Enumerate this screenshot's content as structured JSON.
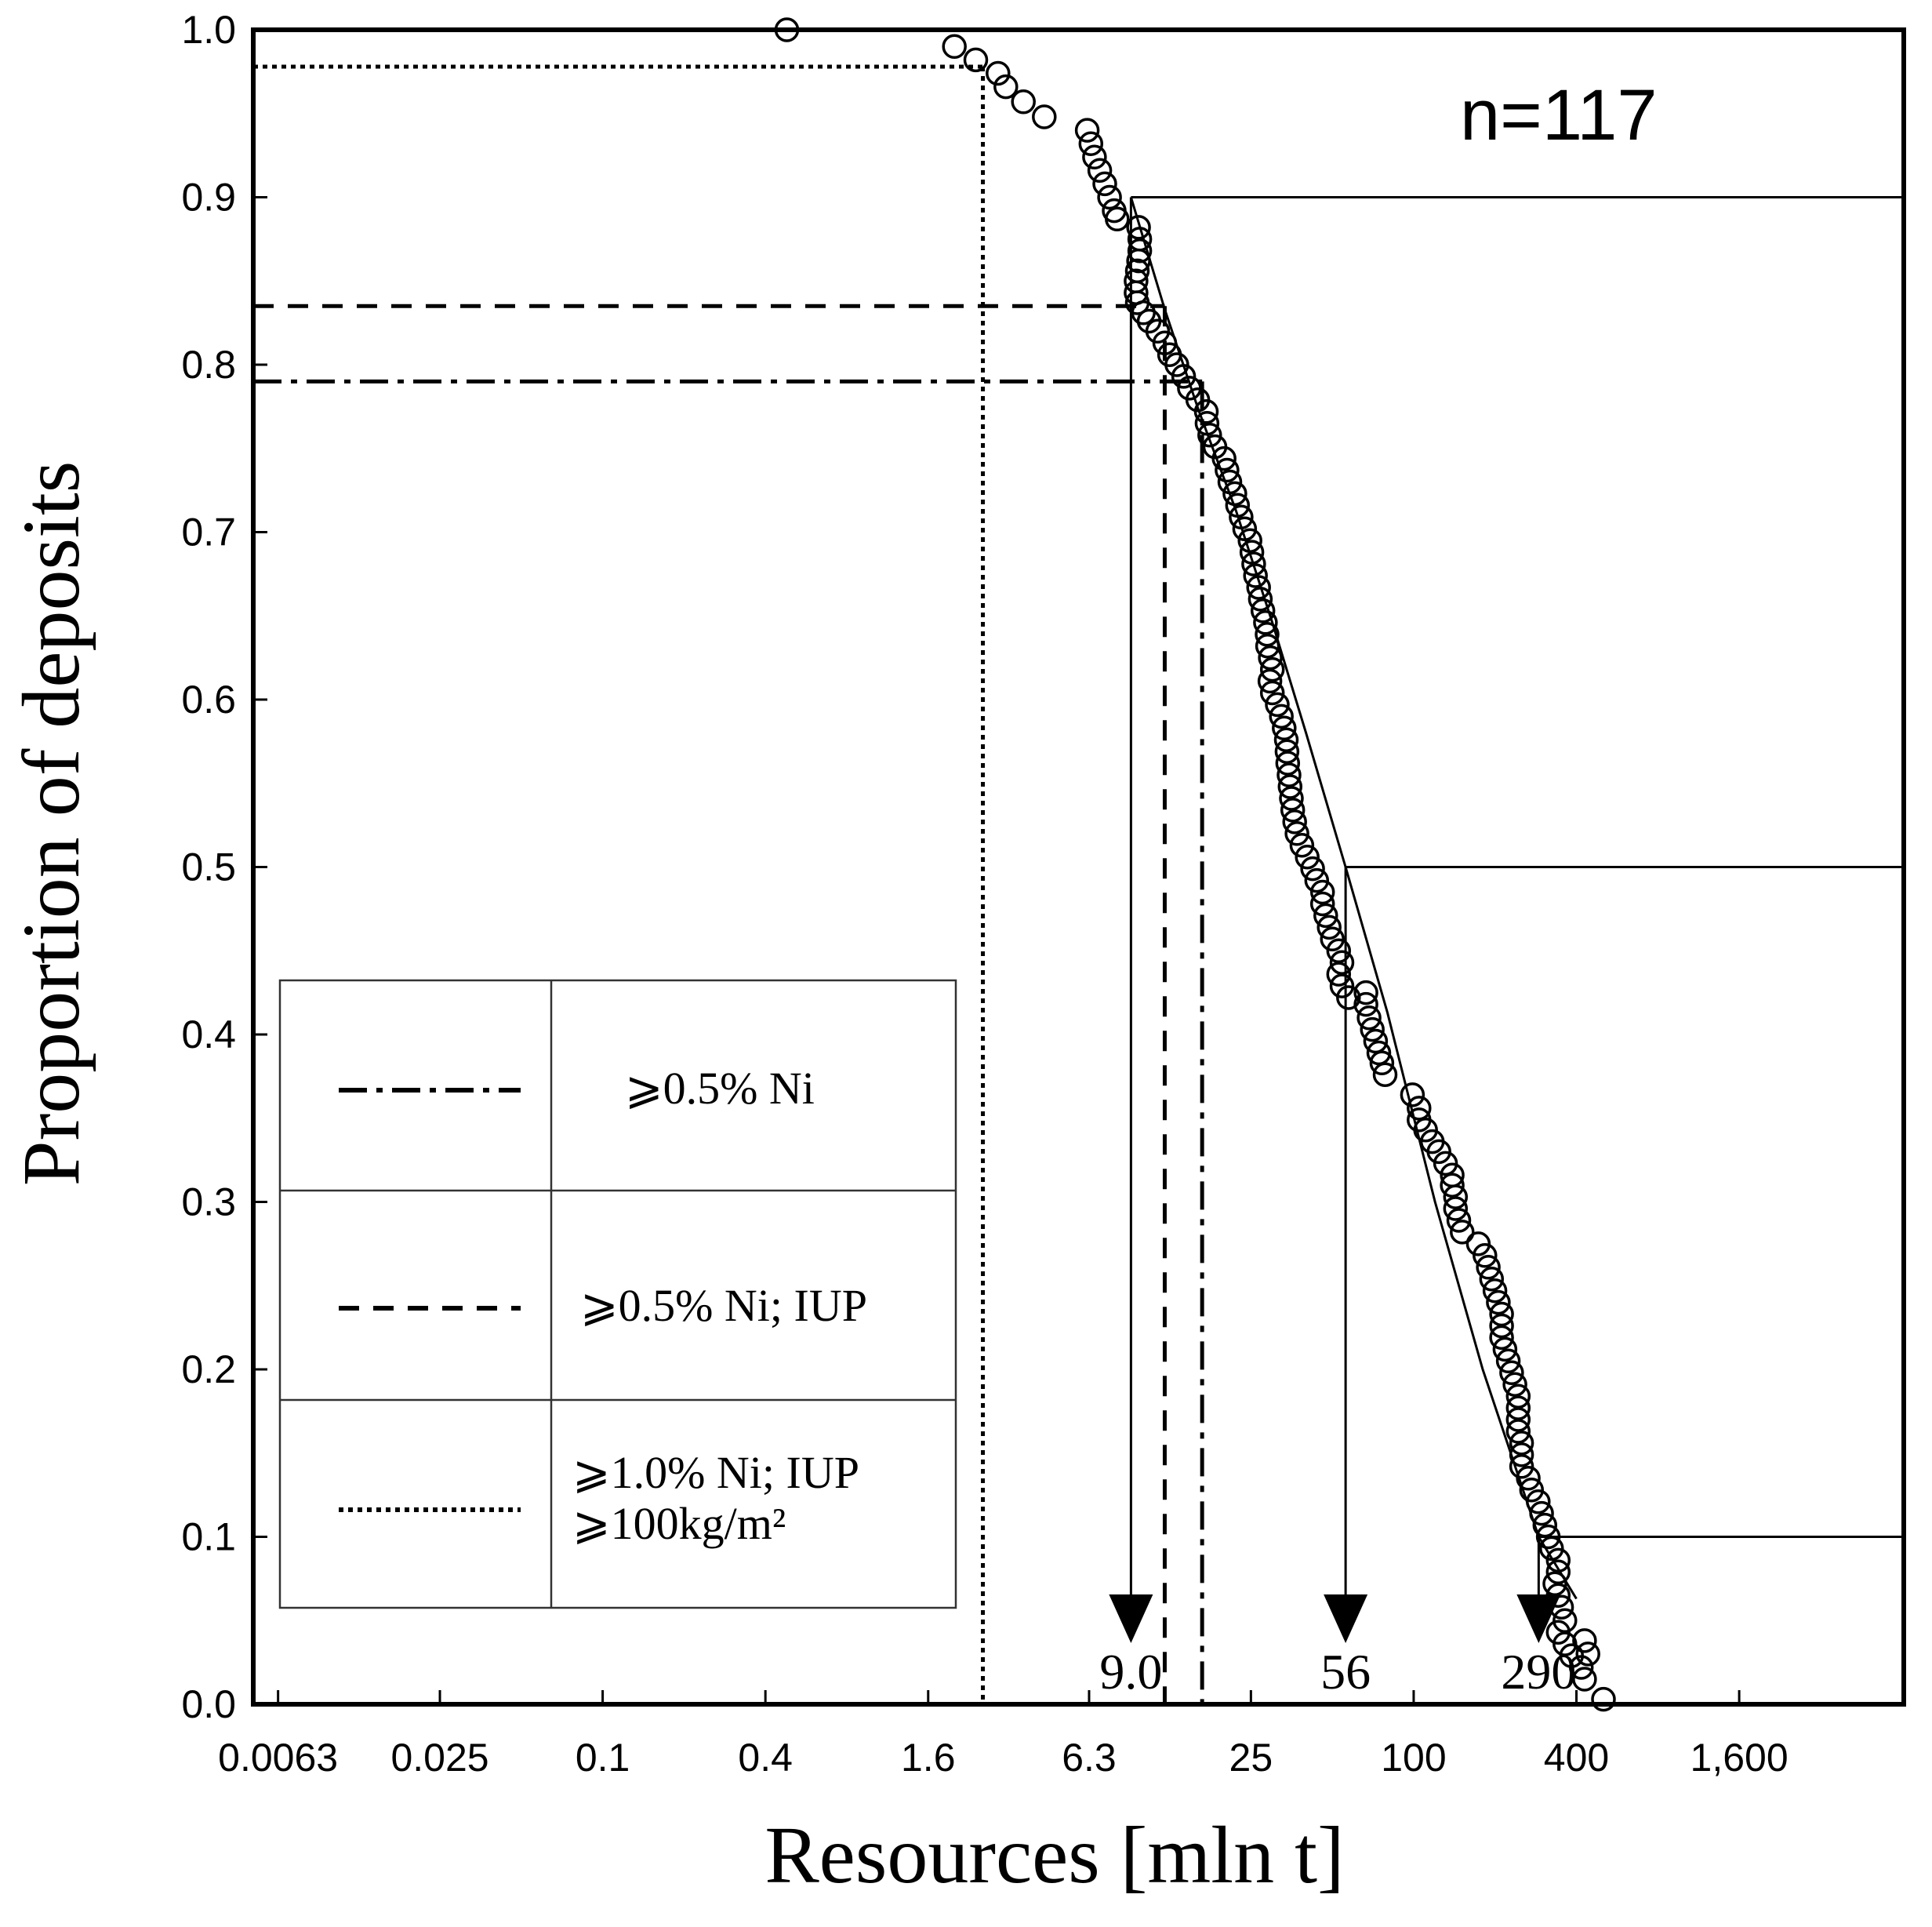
{
  "chart_data": {
    "type": "scatter",
    "title": "",
    "annotation": "n=117",
    "xlabel": "Resources [mln t]",
    "ylabel": "Proportion of deposits",
    "x_scale": "log",
    "x_ticks": [
      {
        "value": 0.0063,
        "label": "0.0063"
      },
      {
        "value": 0.025,
        "label": "0.025"
      },
      {
        "value": 0.1,
        "label": "0.1"
      },
      {
        "value": 0.4,
        "label": "0.4"
      },
      {
        "value": 1.6,
        "label": "1.6"
      },
      {
        "value": 6.3,
        "label": "6.3"
      },
      {
        "value": 25,
        "label": "25"
      },
      {
        "value": 100,
        "label": "100"
      },
      {
        "value": 400,
        "label": "400"
      },
      {
        "value": 1600,
        "label": "1,600"
      }
    ],
    "xlim": [
      0.0051,
      6500
    ],
    "y_ticks": [
      {
        "value": 0.0,
        "label": "0.0"
      },
      {
        "value": 0.1,
        "label": "0.1"
      },
      {
        "value": 0.2,
        "label": "0.2"
      },
      {
        "value": 0.3,
        "label": "0.3"
      },
      {
        "value": 0.4,
        "label": "0.4"
      },
      {
        "value": 0.5,
        "label": "0.5"
      },
      {
        "value": 0.6,
        "label": "0.6"
      },
      {
        "value": 0.7,
        "label": "0.7"
      },
      {
        "value": 0.8,
        "label": "0.8"
      },
      {
        "value": 0.9,
        "label": "0.9"
      },
      {
        "value": 1.0,
        "label": "1.0"
      }
    ],
    "ylim": [
      0,
      1.0
    ],
    "grid": false,
    "series": [
      {
        "name": "deposits",
        "points": [
          [
            0.48,
            1.0
          ],
          [
            2.0,
            0.99
          ],
          [
            2.4,
            0.982
          ],
          [
            2.9,
            0.974
          ],
          [
            3.1,
            0.966
          ],
          [
            3.6,
            0.957
          ],
          [
            4.3,
            0.948
          ],
          [
            6.2,
            0.94
          ],
          [
            6.4,
            0.932
          ],
          [
            6.6,
            0.924
          ],
          [
            6.9,
            0.916
          ],
          [
            7.2,
            0.908
          ],
          [
            7.5,
            0.9
          ],
          [
            7.8,
            0.892
          ],
          [
            8.0,
            0.887
          ],
          [
            9.6,
            0.882
          ],
          [
            9.7,
            0.875
          ],
          [
            9.7,
            0.868
          ],
          [
            9.6,
            0.862
          ],
          [
            9.5,
            0.856
          ],
          [
            9.4,
            0.85
          ],
          [
            9.4,
            0.843
          ],
          [
            9.5,
            0.837
          ],
          [
            10.0,
            0.831
          ],
          [
            10.5,
            0.826
          ],
          [
            11.3,
            0.82
          ],
          [
            12.0,
            0.813
          ],
          [
            12.5,
            0.806
          ],
          [
            13.3,
            0.8
          ],
          [
            14.1,
            0.793
          ],
          [
            14.8,
            0.786
          ],
          [
            15.9,
            0.779
          ],
          [
            17.1,
            0.772
          ],
          [
            17.2,
            0.765
          ],
          [
            17.6,
            0.758
          ],
          [
            18.4,
            0.751
          ],
          [
            19.9,
            0.744
          ],
          [
            20.4,
            0.737
          ],
          [
            20.9,
            0.73
          ],
          [
            21.8,
            0.723
          ],
          [
            22.3,
            0.716
          ],
          [
            23.0,
            0.709
          ],
          [
            23.7,
            0.702
          ],
          [
            24.8,
            0.695
          ],
          [
            25.2,
            0.688
          ],
          [
            25.6,
            0.681
          ],
          [
            26.0,
            0.674
          ],
          [
            26.7,
            0.667
          ],
          [
            27.1,
            0.66
          ],
          [
            27.7,
            0.653
          ],
          [
            28.3,
            0.646
          ],
          [
            28.7,
            0.639
          ],
          [
            28.8,
            0.632
          ],
          [
            29.5,
            0.625
          ],
          [
            30.0,
            0.618
          ],
          [
            29.4,
            0.611
          ],
          [
            30.0,
            0.604
          ],
          [
            31.3,
            0.597
          ],
          [
            32.4,
            0.59
          ],
          [
            33.2,
            0.583
          ],
          [
            33.8,
            0.576
          ],
          [
            34.0,
            0.569
          ],
          [
            34.2,
            0.562
          ],
          [
            34.6,
            0.555
          ],
          [
            34.9,
            0.548
          ],
          [
            35.3,
            0.541
          ],
          [
            35.7,
            0.534
          ],
          [
            36.3,
            0.527
          ],
          [
            37.0,
            0.52
          ],
          [
            38.6,
            0.513
          ],
          [
            40.4,
            0.506
          ],
          [
            42.3,
            0.499
          ],
          [
            43.8,
            0.492
          ],
          [
            46.0,
            0.485
          ],
          [
            46.0,
            0.478
          ],
          [
            47.3,
            0.471
          ],
          [
            48.7,
            0.464
          ],
          [
            50.0,
            0.457
          ],
          [
            52.8,
            0.45
          ],
          [
            54.3,
            0.443
          ],
          [
            52.8,
            0.436
          ],
          [
            54.3,
            0.429
          ],
          [
            57.4,
            0.422
          ],
          [
            66.6,
            0.425
          ],
          [
            66.6,
            0.418
          ],
          [
            68.4,
            0.41
          ],
          [
            70.3,
            0.403
          ],
          [
            72.3,
            0.396
          ],
          [
            74.3,
            0.389
          ],
          [
            76.3,
            0.383
          ],
          [
            78.4,
            0.376
          ],
          [
            99.0,
            0.364
          ],
          [
            104.7,
            0.356
          ],
          [
            104.7,
            0.349
          ],
          [
            110.7,
            0.343
          ],
          [
            117.2,
            0.336
          ],
          [
            124.0,
            0.33
          ],
          [
            131.2,
            0.323
          ],
          [
            138.9,
            0.316
          ],
          [
            138.9,
            0.31
          ],
          [
            142.8,
            0.303
          ],
          [
            142.8,
            0.296
          ],
          [
            146.9,
            0.289
          ],
          [
            151.1,
            0.282
          ],
          [
            173.4,
            0.275
          ],
          [
            183.5,
            0.268
          ],
          [
            188.8,
            0.261
          ],
          [
            194.2,
            0.254
          ],
          [
            199.8,
            0.247
          ],
          [
            205.6,
            0.24
          ],
          [
            211.5,
            0.233
          ],
          [
            211.5,
            0.226
          ],
          [
            211.5,
            0.219
          ],
          [
            217.6,
            0.212
          ],
          [
            223.8,
            0.205
          ],
          [
            230.3,
            0.198
          ],
          [
            236.9,
            0.191
          ],
          [
            243.7,
            0.184
          ],
          [
            243.7,
            0.177
          ],
          [
            243.7,
            0.17
          ],
          [
            243.7,
            0.163
          ],
          [
            250.7,
            0.156
          ],
          [
            250.7,
            0.149
          ],
          [
            250.7,
            0.142
          ],
          [
            265.4,
            0.135
          ],
          [
            273.0,
            0.128
          ],
          [
            288.9,
            0.121
          ],
          [
            297.3,
            0.114
          ],
          [
            305.8,
            0.107
          ],
          [
            314.6,
            0.1
          ],
          [
            323.6,
            0.093
          ],
          [
            342.5,
            0.086
          ],
          [
            342.5,
            0.079
          ],
          [
            332.9,
            0.072
          ],
          [
            342.5,
            0.065
          ],
          [
            352.4,
            0.058
          ],
          [
            362.5,
            0.05
          ],
          [
            342.5,
            0.043
          ],
          [
            362.5,
            0.036
          ],
          [
            383.7,
            0.029
          ],
          [
            428.8,
            0.038
          ],
          [
            441.1,
            0.03
          ],
          [
            416.8,
            0.022
          ],
          [
            428.8,
            0.015
          ],
          [
            503.5,
            0.003
          ]
        ]
      },
      {
        "name": "fit curve",
        "points": [
          [
            9.0,
            0.9
          ],
          [
            12.0,
            0.833
          ],
          [
            16.0,
            0.773
          ],
          [
            22.0,
            0.713
          ],
          [
            30.0,
            0.646
          ],
          [
            40.0,
            0.58
          ],
          [
            56.0,
            0.5
          ],
          [
            80.0,
            0.413
          ],
          [
            120.0,
            0.3
          ],
          [
            180.0,
            0.2
          ],
          [
            290.0,
            0.1
          ],
          [
            400.0,
            0.063
          ]
        ]
      }
    ],
    "reference_lines": [
      {
        "style": "dashdot",
        "y": 0.79,
        "x": 16.5
      },
      {
        "style": "dashed",
        "y": 0.835,
        "x": 12.0
      },
      {
        "style": "dotted",
        "y": 0.978,
        "x": 2.55
      }
    ],
    "percentile_markers": [
      {
        "y": 0.9,
        "x": 9.0,
        "label": "9.0"
      },
      {
        "y": 0.5,
        "x": 56,
        "label": "56"
      },
      {
        "y": 0.1,
        "x": 290,
        "label": "290"
      }
    ],
    "legend": {
      "position": "lower-left",
      "entries": [
        {
          "style": "dashdot",
          "label": "⩾0.5% Ni"
        },
        {
          "style": "dashed",
          "label": "⩾0.5% Ni; IUP"
        },
        {
          "style": "dotted",
          "label_lines": [
            "⩾1.0% Ni; IUP",
            "⩾100kg/m²"
          ]
        }
      ]
    }
  }
}
